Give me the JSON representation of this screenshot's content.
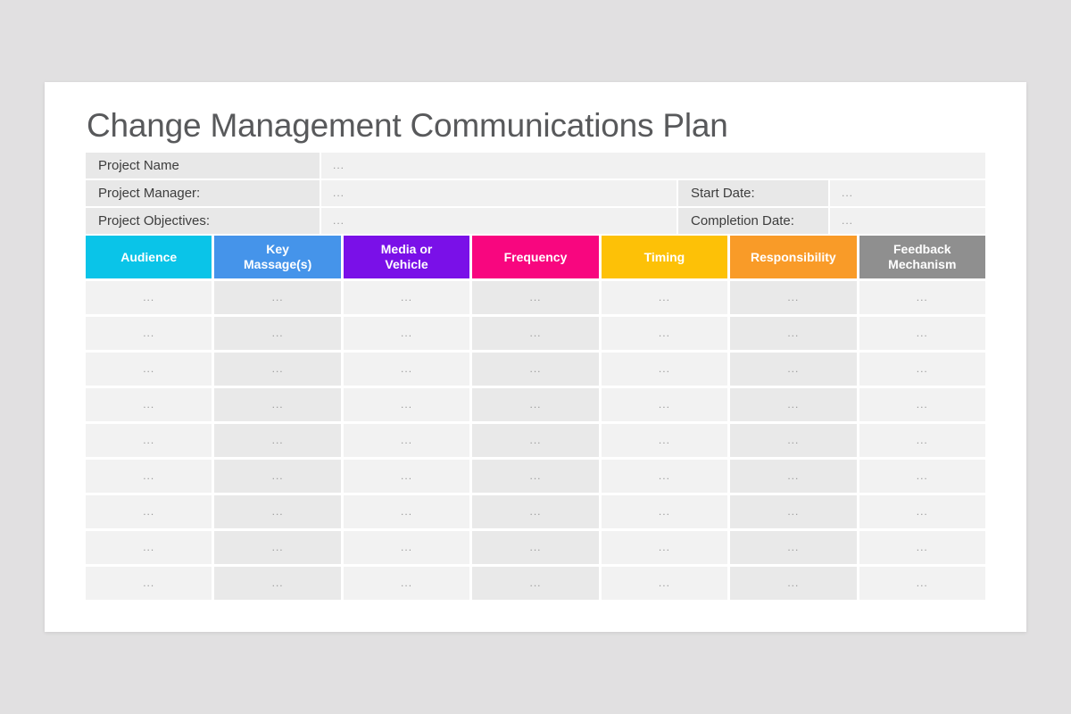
{
  "page": {
    "background_color": "#e1e0e1",
    "slide_background": "#ffffff",
    "title": "Change Management Communications Plan",
    "title_color": "#58595b"
  },
  "info": {
    "rows": [
      {
        "label": "Project Name",
        "value": "..."
      },
      {
        "label": "Project Manager:",
        "value": "...",
        "extra_label": "Start Date:",
        "extra_value": "..."
      },
      {
        "label": "Project Objectives:",
        "value": "...",
        "extra_label": "Completion Date:",
        "extra_value": "..."
      }
    ]
  },
  "table": {
    "headers": [
      {
        "label": "Audience",
        "color": "#0ac4e8"
      },
      {
        "label": "Key Massage(s)",
        "color": "#4594ea"
      },
      {
        "label": "Media or Vehicle",
        "color": "#7a10e8"
      },
      {
        "label": "Frequency",
        "color": "#f8067f"
      },
      {
        "label": "Timing",
        "color": "#fdc107"
      },
      {
        "label": "Responsibility",
        "color": "#f99b28"
      },
      {
        "label": "Feedback Mechanism",
        "color": "#8f8f8f"
      }
    ],
    "header_text_color": "#ffffff",
    "body_row_count": 9,
    "cell_placeholder": "...",
    "column_bg_light": "#f2f2f2",
    "column_bg_dark": "#e9e9e9"
  }
}
